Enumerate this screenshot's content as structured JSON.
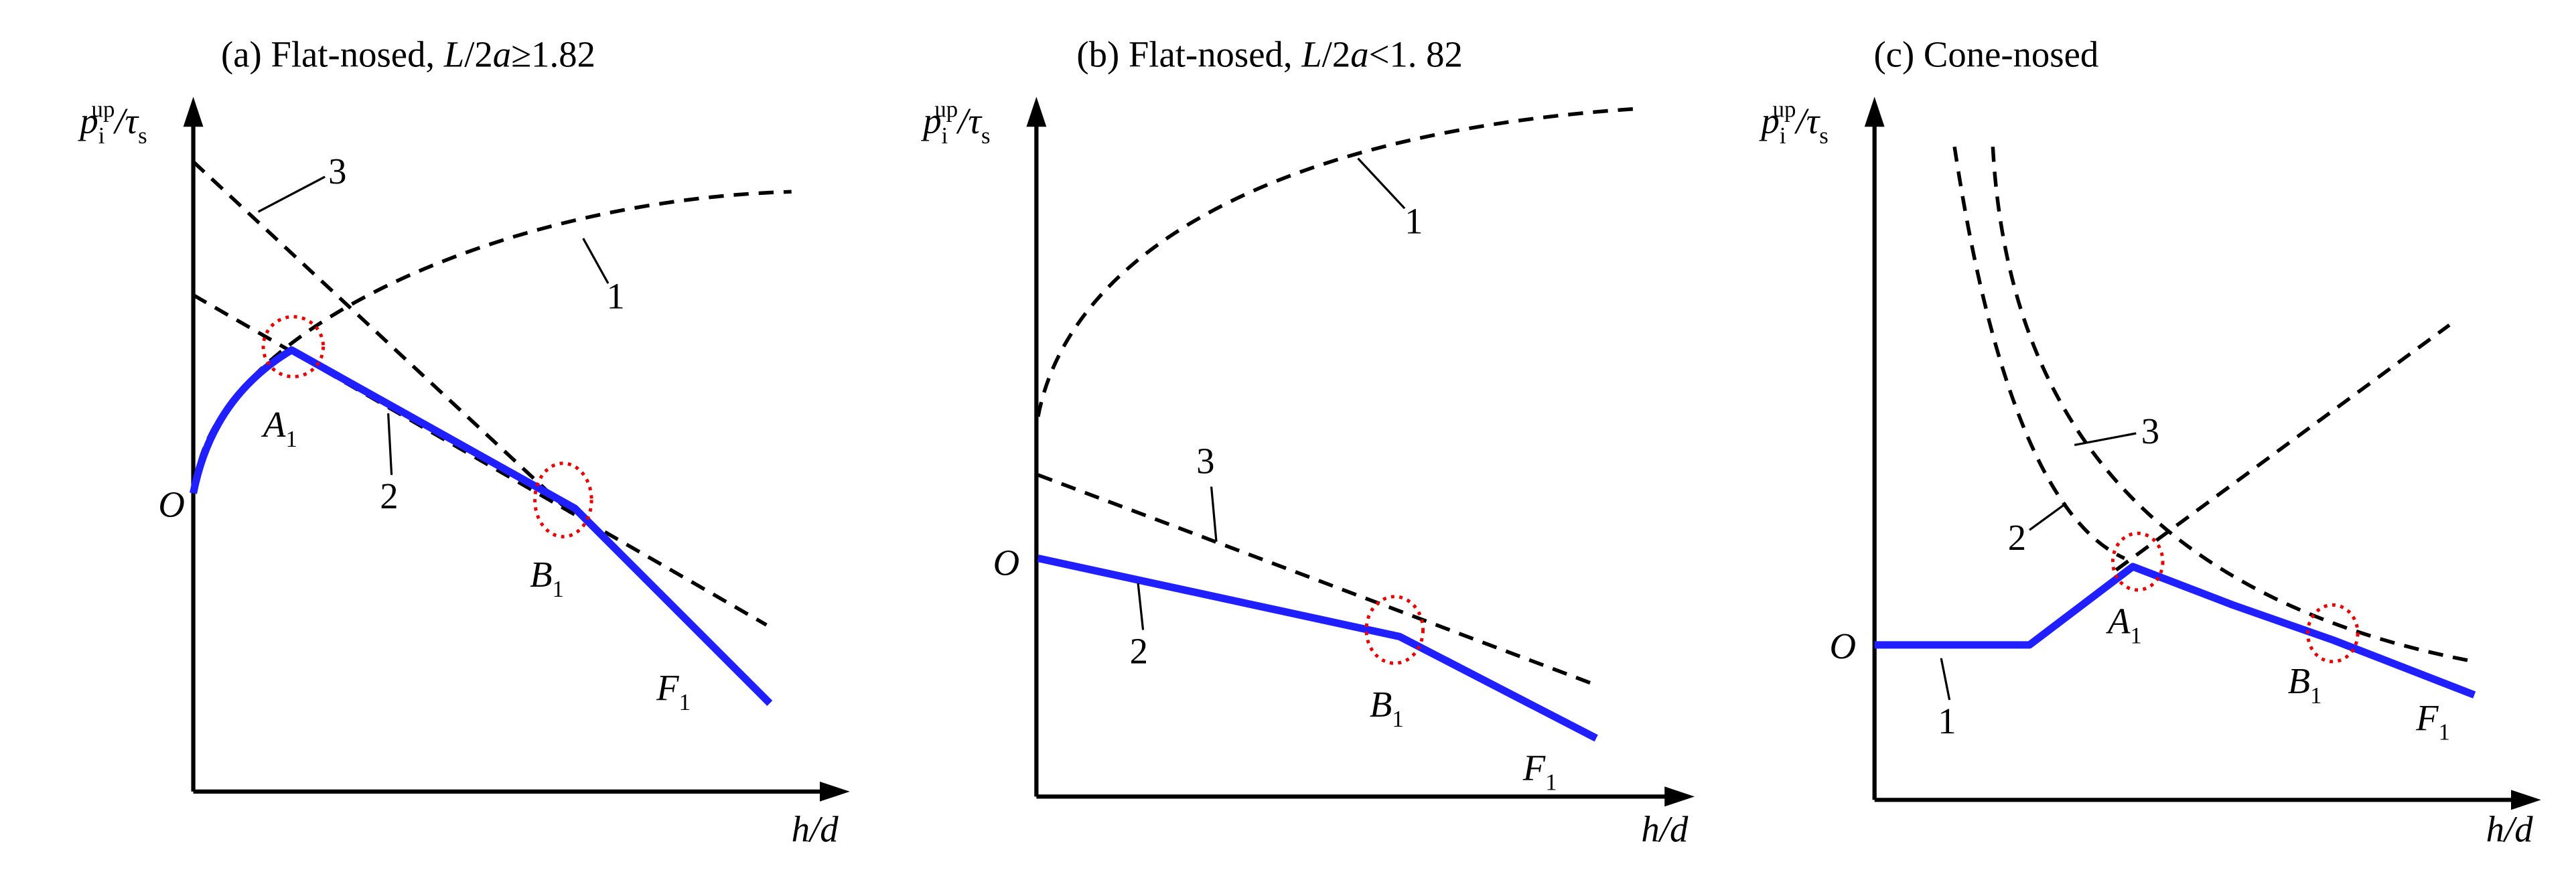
{
  "axes": {
    "y_label": {
      "p": "p",
      "sub": "i",
      "sup": "up",
      "rest": "/τ",
      "sub2": "s"
    },
    "x_label": "h/d",
    "origin": "O"
  },
  "panels": [
    {
      "title": [
        "(a) Flat-nosed, ",
        "L",
        "/2",
        "a",
        "≥1.82"
      ],
      "curve_labels": [
        "1",
        "2",
        "3"
      ],
      "points": [
        {
          "letter": "A",
          "sub": "1"
        },
        {
          "letter": "B",
          "sub": "1"
        },
        {
          "letter": "F",
          "sub": "1"
        }
      ]
    },
    {
      "title": [
        "(b) Flat-nosed, ",
        "L",
        "/2",
        "a",
        "<1. 82"
      ],
      "curve_labels": [
        "1",
        "2",
        "3"
      ],
      "points": [
        {
          "letter": "B",
          "sub": "1"
        },
        {
          "letter": "F",
          "sub": "1"
        }
      ]
    },
    {
      "title": [
        "(c) Cone-nosed"
      ],
      "curve_labels": [
        "1",
        "2",
        "3"
      ],
      "points": [
        {
          "letter": "A",
          "sub": "1"
        },
        {
          "letter": "B",
          "sub": "1"
        },
        {
          "letter": "F",
          "sub": "1"
        }
      ]
    }
  ]
}
